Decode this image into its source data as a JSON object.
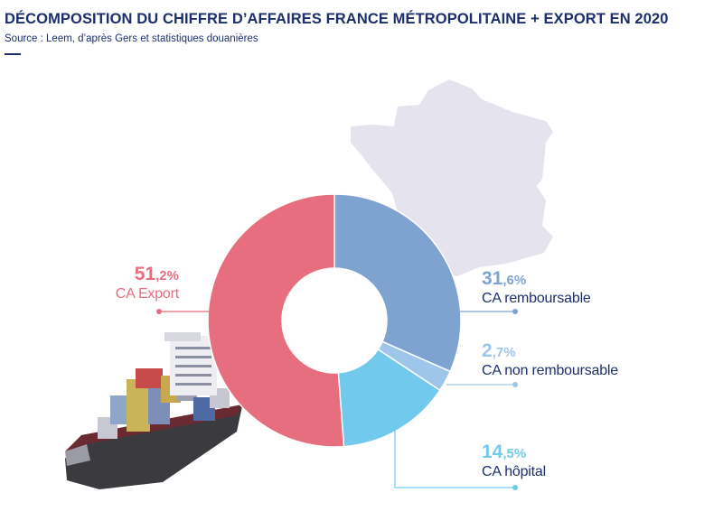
{
  "header": {
    "title": "DÉCOMPOSITION DU CHIFFRE D’AFFAIRES FRANCE MÉTROPOLITAINE + EXPORT EN 2020",
    "source": "Source : Leem, d’après Gers et statistiques douanières"
  },
  "colors": {
    "title": "#1d2f6b",
    "export": "#e76e7e",
    "remboursable": "#7fa3d1",
    "non_remboursable": "#9ec5ea",
    "hopital": "#72c9ee",
    "map": "#e4e3ee"
  },
  "chart_data": {
    "type": "pie",
    "variant": "donut",
    "slices": [
      {
        "value": 51.2,
        "value_int": "51",
        "value_dec": ",2%",
        "label": "CA Export"
      },
      {
        "value": 31.6,
        "value_int": "31",
        "value_dec": ",6%",
        "label": "CA remboursable"
      },
      {
        "value": 2.7,
        "value_int": "2",
        "value_dec": ",7%",
        "label": "CA non remboursable"
      },
      {
        "value": 14.5,
        "value_int": "14",
        "value_dec": ",5%",
        "label": "CA hôpital"
      }
    ],
    "unit": "%"
  },
  "illustrations": {
    "map": "france-map-icon",
    "ship": "container-ship-icon"
  }
}
